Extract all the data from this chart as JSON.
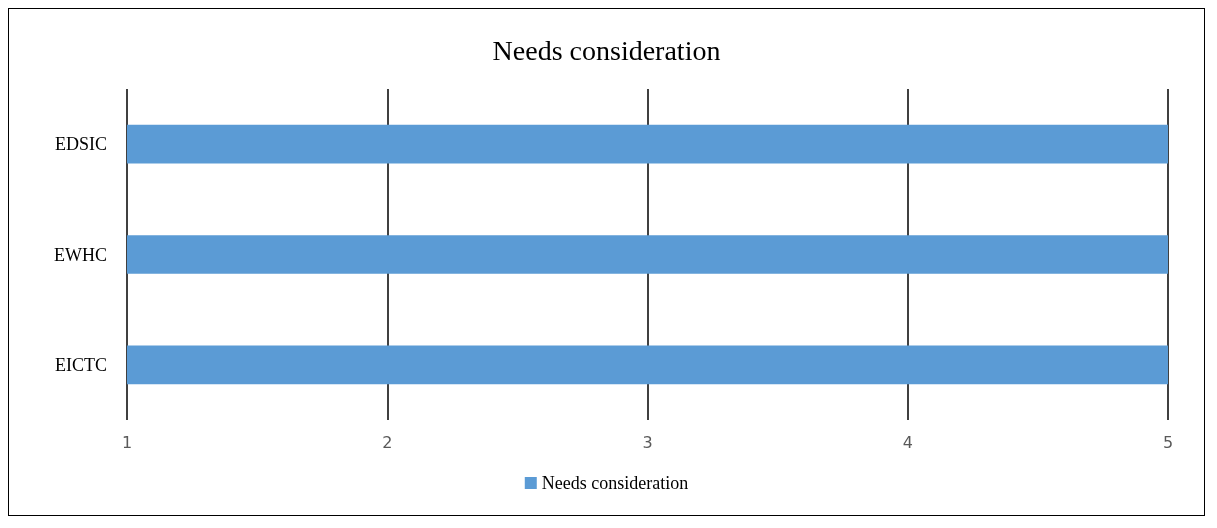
{
  "chart_data": {
    "type": "bar",
    "title": "Needs consideration",
    "orientation": "horizontal",
    "categories": [
      "EDSIC",
      "EWHC",
      "EICTC"
    ],
    "series": [
      {
        "name": "Needs consideration",
        "color": "#5b9bd5",
        "values": [
          5,
          5,
          5
        ]
      }
    ],
    "xlim": [
      1,
      5
    ],
    "xticks": [
      1,
      2,
      3,
      4,
      5
    ],
    "grid": "x",
    "legend": "bottom"
  }
}
